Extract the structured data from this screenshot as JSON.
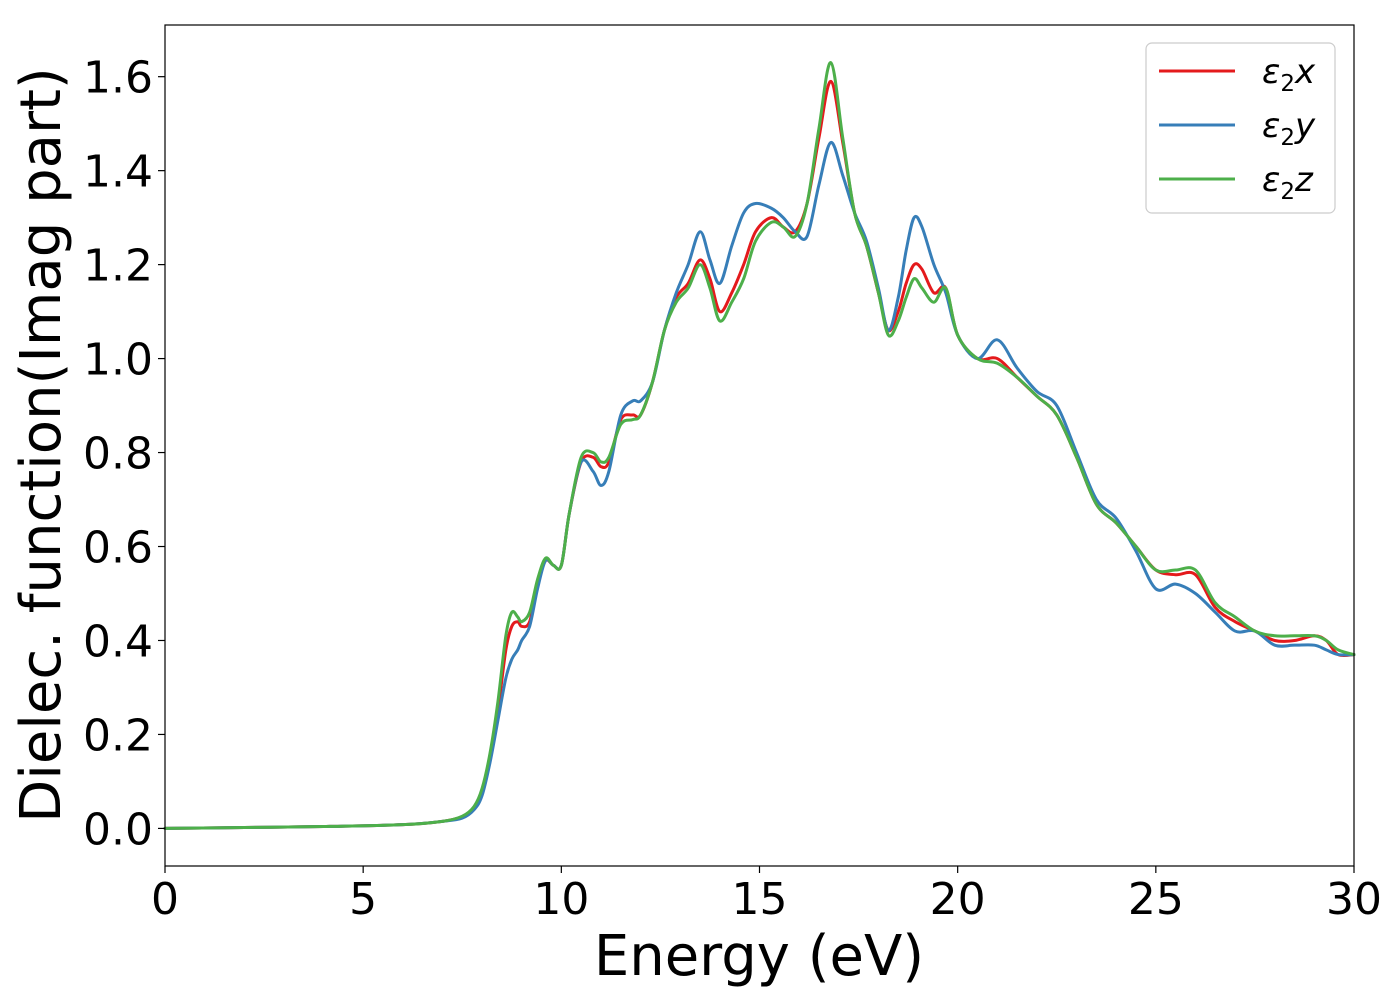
{
  "chart_data": {
    "type": "line",
    "title": "",
    "xlabel": "Energy (eV)",
    "ylabel": "Dielec. function(Imag part)",
    "xlim": [
      0,
      30
    ],
    "ylim": [
      -0.08,
      1.71
    ],
    "xticks": [
      0,
      5,
      10,
      15,
      20,
      25,
      30
    ],
    "xtick_labels": [
      "0",
      "5",
      "10",
      "15",
      "20",
      "25",
      "30"
    ],
    "yticks": [
      0.0,
      0.2,
      0.4,
      0.6,
      0.8,
      1.0,
      1.2,
      1.4,
      1.6
    ],
    "ytick_labels": [
      "0.0",
      "0.2",
      "0.4",
      "0.6",
      "0.8",
      "1.0",
      "1.2",
      "1.4",
      "1.6"
    ],
    "grid": false,
    "legend_position": "top-right",
    "series": [
      {
        "name": "ε₂x",
        "legend_base": "ε",
        "legend_sub": "2",
        "legend_var": "x",
        "color": "#e41a1c",
        "x": [
          0,
          2,
          4,
          6,
          7,
          7.5,
          7.8,
          8.0,
          8.2,
          8.4,
          8.6,
          8.75,
          8.9,
          9.0,
          9.2,
          9.4,
          9.6,
          9.8,
          10.0,
          10.2,
          10.5,
          10.8,
          11.0,
          11.2,
          11.5,
          11.8,
          12.0,
          12.3,
          12.6,
          12.9,
          13.2,
          13.5,
          13.75,
          14.0,
          14.3,
          14.6,
          14.9,
          15.3,
          15.6,
          15.9,
          16.2,
          16.5,
          16.8,
          17.1,
          17.4,
          17.7,
          18.0,
          18.25,
          18.5,
          18.7,
          18.9,
          19.1,
          19.4,
          19.7,
          20.0,
          20.5,
          21.0,
          21.5,
          22.0,
          22.5,
          23.0,
          23.5,
          24.0,
          24.5,
          25.0,
          25.5,
          26.0,
          26.5,
          27.0,
          27.5,
          28.0,
          28.5,
          29.0,
          29.3,
          29.6,
          30.0
        ],
        "values": [
          0.0,
          0.002,
          0.004,
          0.008,
          0.015,
          0.025,
          0.045,
          0.08,
          0.15,
          0.25,
          0.38,
          0.43,
          0.44,
          0.43,
          0.44,
          0.52,
          0.57,
          0.56,
          0.56,
          0.67,
          0.78,
          0.79,
          0.77,
          0.78,
          0.87,
          0.88,
          0.88,
          0.95,
          1.06,
          1.13,
          1.16,
          1.21,
          1.17,
          1.1,
          1.14,
          1.2,
          1.27,
          1.3,
          1.28,
          1.27,
          1.33,
          1.47,
          1.59,
          1.46,
          1.31,
          1.24,
          1.14,
          1.06,
          1.1,
          1.16,
          1.2,
          1.19,
          1.14,
          1.15,
          1.05,
          1.0,
          1.0,
          0.96,
          0.92,
          0.88,
          0.79,
          0.69,
          0.65,
          0.6,
          0.55,
          0.54,
          0.54,
          0.47,
          0.44,
          0.42,
          0.4,
          0.4,
          0.41,
          0.4,
          0.37,
          0.37
        ]
      },
      {
        "name": "ε₂y",
        "legend_base": "ε",
        "legend_sub": "2",
        "legend_var": "y",
        "color": "#377eb8",
        "x": [
          0,
          2,
          4,
          6,
          7,
          7.5,
          7.8,
          8.0,
          8.2,
          8.4,
          8.6,
          8.75,
          8.9,
          9.0,
          9.2,
          9.4,
          9.6,
          9.8,
          10.0,
          10.2,
          10.5,
          10.8,
          11.0,
          11.2,
          11.5,
          11.8,
          12.0,
          12.3,
          12.6,
          12.9,
          13.2,
          13.5,
          13.75,
          14.0,
          14.3,
          14.6,
          14.9,
          15.3,
          15.6,
          15.9,
          16.2,
          16.5,
          16.8,
          17.1,
          17.4,
          17.7,
          18.0,
          18.25,
          18.5,
          18.7,
          18.9,
          19.1,
          19.4,
          19.7,
          20.0,
          20.5,
          21.0,
          21.5,
          22.0,
          22.5,
          23.0,
          23.5,
          24.0,
          24.5,
          25.0,
          25.5,
          26.0,
          26.5,
          27.0,
          27.5,
          28.0,
          28.5,
          29.0,
          29.3,
          29.6,
          30.0
        ],
        "values": [
          0.0,
          0.002,
          0.004,
          0.008,
          0.015,
          0.022,
          0.04,
          0.07,
          0.14,
          0.23,
          0.32,
          0.36,
          0.38,
          0.4,
          0.43,
          0.51,
          0.57,
          0.56,
          0.56,
          0.67,
          0.78,
          0.76,
          0.73,
          0.76,
          0.88,
          0.91,
          0.91,
          0.95,
          1.06,
          1.14,
          1.2,
          1.27,
          1.21,
          1.16,
          1.24,
          1.31,
          1.33,
          1.32,
          1.3,
          1.27,
          1.26,
          1.37,
          1.46,
          1.39,
          1.31,
          1.25,
          1.15,
          1.06,
          1.13,
          1.23,
          1.3,
          1.28,
          1.2,
          1.14,
          1.05,
          1.0,
          1.04,
          0.98,
          0.93,
          0.9,
          0.8,
          0.7,
          0.66,
          0.59,
          0.51,
          0.52,
          0.5,
          0.46,
          0.42,
          0.42,
          0.39,
          0.39,
          0.39,
          0.38,
          0.37,
          0.37
        ]
      },
      {
        "name": "ε₂z",
        "legend_base": "ε",
        "legend_sub": "2",
        "legend_var": "z",
        "color": "#4daf4a",
        "x": [
          0,
          2,
          4,
          6,
          7,
          7.5,
          7.8,
          8.0,
          8.2,
          8.4,
          8.6,
          8.75,
          8.9,
          9.0,
          9.2,
          9.4,
          9.6,
          9.8,
          10.0,
          10.2,
          10.5,
          10.8,
          11.0,
          11.2,
          11.5,
          11.8,
          12.0,
          12.3,
          12.6,
          12.9,
          13.2,
          13.5,
          13.75,
          14.0,
          14.3,
          14.6,
          14.9,
          15.3,
          15.6,
          15.9,
          16.2,
          16.5,
          16.8,
          17.1,
          17.4,
          17.7,
          18.0,
          18.25,
          18.5,
          18.7,
          18.9,
          19.1,
          19.4,
          19.7,
          20.0,
          20.5,
          21.0,
          21.5,
          22.0,
          22.5,
          23.0,
          23.5,
          24.0,
          24.5,
          25.0,
          25.5,
          26.0,
          26.5,
          27.0,
          27.5,
          28.0,
          28.5,
          29.0,
          29.3,
          29.6,
          30.0
        ],
        "values": [
          0.0,
          0.002,
          0.004,
          0.008,
          0.015,
          0.026,
          0.047,
          0.085,
          0.16,
          0.27,
          0.41,
          0.46,
          0.45,
          0.44,
          0.46,
          0.53,
          0.575,
          0.56,
          0.56,
          0.67,
          0.79,
          0.8,
          0.78,
          0.79,
          0.86,
          0.87,
          0.88,
          0.95,
          1.06,
          1.12,
          1.15,
          1.2,
          1.15,
          1.08,
          1.12,
          1.17,
          1.25,
          1.29,
          1.28,
          1.26,
          1.33,
          1.49,
          1.63,
          1.47,
          1.31,
          1.24,
          1.14,
          1.05,
          1.08,
          1.13,
          1.17,
          1.15,
          1.12,
          1.15,
          1.05,
          1.0,
          0.99,
          0.96,
          0.92,
          0.88,
          0.79,
          0.69,
          0.65,
          0.6,
          0.55,
          0.55,
          0.55,
          0.48,
          0.45,
          0.42,
          0.41,
          0.41,
          0.41,
          0.4,
          0.38,
          0.37
        ]
      }
    ]
  }
}
